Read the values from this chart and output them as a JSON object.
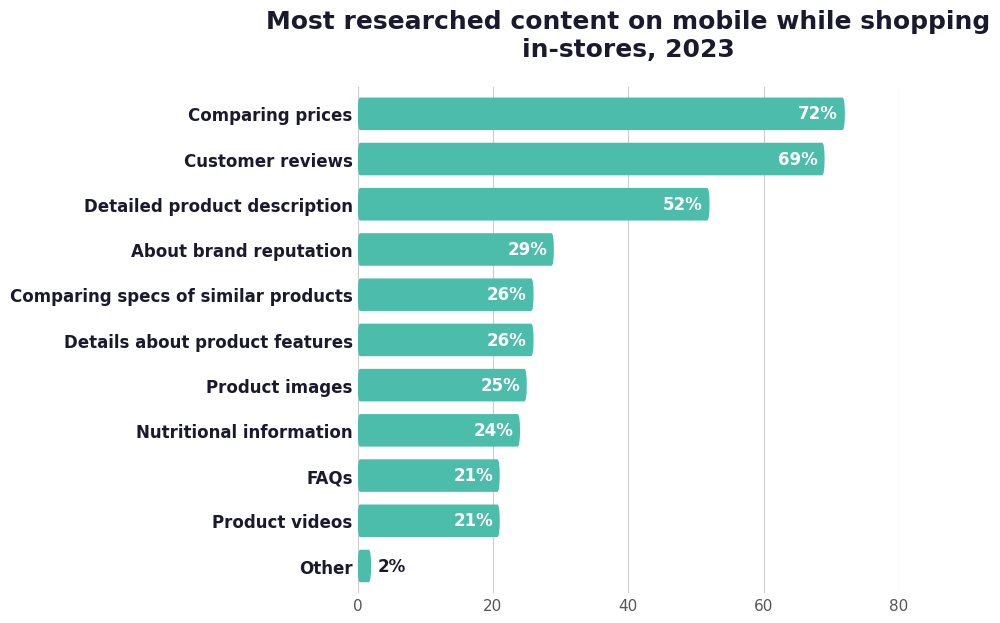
{
  "title": "Most researched content on mobile while shopping\nin-stores, 2023",
  "categories": [
    "Comparing prices",
    "Customer reviews",
    "Detailed product description",
    "About brand reputation",
    "Comparing specs of similar products",
    "Details about product features",
    "Product images",
    "Nutritional information",
    "FAQs",
    "Product videos",
    "Other"
  ],
  "values": [
    72,
    69,
    52,
    29,
    26,
    26,
    25,
    24,
    21,
    21,
    2
  ],
  "bar_color": "#4DBDAB",
  "bar_label_color": "#ffffff",
  "outside_label_color": "#1a1a2e",
  "title_color": "#1a1a2e",
  "label_color": "#1a1a2e",
  "tick_color": "#555555",
  "background_color": "#ffffff",
  "xlim": [
    0,
    80
  ],
  "xticks": [
    0,
    20,
    40,
    60,
    80
  ],
  "title_fontsize": 18,
  "label_fontsize": 12,
  "bar_label_fontsize": 12,
  "bar_height": 0.72,
  "bar_spacing": 1.0
}
